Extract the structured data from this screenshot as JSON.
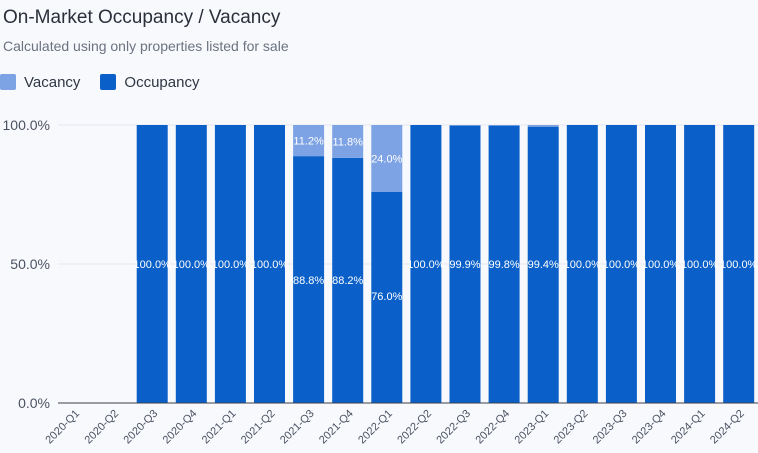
{
  "header": {
    "title": "On-Market Occupancy / Vacancy",
    "subtitle": "Calculated using only properties listed for sale"
  },
  "legend": [
    {
      "label": "Vacancy",
      "color": "#7ea3e4"
    },
    {
      "label": "Occupancy",
      "color": "#0a60c8"
    }
  ],
  "chart_data": {
    "type": "bar",
    "stacked": true,
    "title": "On-Market Occupancy / Vacancy",
    "subtitle": "Calculated using only properties listed for sale",
    "xlabel": "",
    "ylabel": "",
    "ylim": [
      0,
      100
    ],
    "yticks": [
      "0.0%",
      "50.0%",
      "100.0%"
    ],
    "ytick_values": [
      0,
      50,
      100
    ],
    "grid": true,
    "legend_position": "top-left",
    "categories": [
      "2020-Q1",
      "2020-Q2",
      "2020-Q3",
      "2020-Q4",
      "2021-Q1",
      "2021-Q2",
      "2021-Q3",
      "2021-Q4",
      "2022-Q1",
      "2022-Q2",
      "2022-Q3",
      "2022-Q4",
      "2023-Q1",
      "2023-Q2",
      "2023-Q3",
      "2023-Q4",
      "2024-Q1",
      "2024-Q2"
    ],
    "series": [
      {
        "name": "Occupancy",
        "color": "#0a60c8",
        "values": [
          null,
          null,
          100.0,
          100.0,
          100.0,
          100.0,
          88.8,
          88.2,
          76.0,
          100.0,
          99.9,
          99.8,
          99.4,
          100.0,
          100.0,
          100.0,
          100.0,
          100.0
        ],
        "labels": [
          "",
          "",
          "100.0%",
          "100.0%",
          "100.0%",
          "100.0%",
          "88.8%",
          "88.2%",
          "76.0%",
          "100.0%",
          "99.9%",
          "99.8%",
          "99.4%",
          "100.0%",
          "100.0%",
          "100.0%",
          "100.0%",
          "100.0%"
        ]
      },
      {
        "name": "Vacancy",
        "color": "#7ea3e4",
        "values": [
          null,
          null,
          0,
          0,
          0,
          0,
          11.2,
          11.8,
          24.0,
          0,
          0.1,
          0.2,
          0.6,
          0,
          0,
          0,
          0,
          0
        ],
        "labels": [
          "",
          "",
          "",
          "",
          "",
          "",
          "11.2%",
          "11.8%",
          "24.0%",
          "",
          "",
          "",
          "",
          "",
          "",
          "",
          "",
          ""
        ]
      }
    ]
  }
}
